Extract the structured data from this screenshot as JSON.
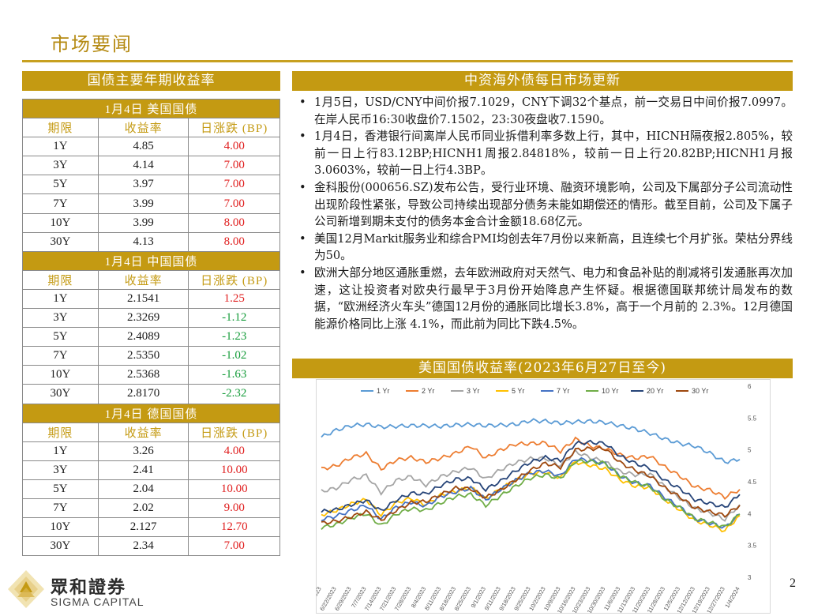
{
  "page": {
    "title": "市场要闻",
    "page_number": "2"
  },
  "left": {
    "header": "国债主要年期收益率",
    "col_headers": [
      "期限",
      "收益率",
      "日涨跌 (BP)"
    ],
    "sections": [
      {
        "title": "1月4日   美国国债",
        "rows": [
          {
            "term": "1Y",
            "yield": "4.85",
            "change": "4.00",
            "dir": "up"
          },
          {
            "term": "3Y",
            "yield": "4.14",
            "change": "7.00",
            "dir": "up"
          },
          {
            "term": "5Y",
            "yield": "3.97",
            "change": "7.00",
            "dir": "up"
          },
          {
            "term": "7Y",
            "yield": "3.99",
            "change": "7.00",
            "dir": "up"
          },
          {
            "term": "10Y",
            "yield": "3.99",
            "change": "8.00",
            "dir": "up"
          },
          {
            "term": "30Y",
            "yield": "4.13",
            "change": "8.00",
            "dir": "up"
          }
        ]
      },
      {
        "title": "1月4日   中国国债",
        "rows": [
          {
            "term": "1Y",
            "yield": "2.1541",
            "change": "1.25",
            "dir": "up"
          },
          {
            "term": "3Y",
            "yield": "2.3269",
            "change": "-1.12",
            "dir": "down"
          },
          {
            "term": "5Y",
            "yield": "2.4089",
            "change": "-1.23",
            "dir": "down"
          },
          {
            "term": "7Y",
            "yield": "2.5350",
            "change": "-1.02",
            "dir": "down"
          },
          {
            "term": "10Y",
            "yield": "2.5368",
            "change": "-1.63",
            "dir": "down"
          },
          {
            "term": "30Y",
            "yield": "2.8170",
            "change": "-2.32",
            "dir": "down"
          }
        ]
      },
      {
        "title": "1月4日   德国国债",
        "rows": [
          {
            "term": "1Y",
            "yield": "3.26",
            "change": "4.00",
            "dir": "up"
          },
          {
            "term": "3Y",
            "yield": "2.41",
            "change": "10.00",
            "dir": "up"
          },
          {
            "term": "5Y",
            "yield": "2.04",
            "change": "10.00",
            "dir": "up"
          },
          {
            "term": "7Y",
            "yield": "2.02",
            "change": "9.00",
            "dir": "up"
          },
          {
            "term": "10Y",
            "yield": "2.127",
            "change": "12.70",
            "dir": "up"
          },
          {
            "term": "30Y",
            "yield": "2.34",
            "change": "7.00",
            "dir": "up"
          }
        ]
      }
    ]
  },
  "right": {
    "header": "中资海外债每日市场更新",
    "bullets": [
      "1月5日，USD/CNY中间价报7.1029，CNY下调32个基点，前一交易日中间价报7.0997。在岸人民币16:30收盘价7.1502，23:30夜盘收7.1590。",
      "1月4日，香港银行间离岸人民币同业拆借利率多数上行，其中，HICNH隔夜报2.805%，较前一日上行83.12BP;HICNH1周报2.84818%，较前一日上行20.82BP;HICNH1月报3.0603%，较前一日上行4.3BP。",
      "金科股份(000656.SZ)发布公告，受行业环境、融资环境影响，公司及下属部分子公司流动性出现阶段性紧张，导致公司持续出现部分债务未能如期偿还的情形。截至目前，公司及下属子公司新增到期未支付的债务本金合计金额18.68亿元。",
      "美国12月Markit服务业和综合PMI均创去年7月份以来新高，且连续七个月扩张。荣枯分界线为50。",
      "欧洲大部分地区通胀重燃，去年欧洲政府对天然气、电力和食品补贴的削减将引发通胀再次加速，这让投资者对欧央行最早于3月份开始降息产生怀疑。根据德国联邦统计局发布的数据，“欧洲经济火车头”德国12月份的通胀同比增长3.8%，高于一个月前的 2.3%。12月德国能源价格同比上涨 4.1%，而此前为同比下跌4.5%。"
    ],
    "bullet_glyph": "•",
    "chart_header": "美国国债收益率(2023年6月27日至今)"
  },
  "logo": {
    "cn": "眾和證券",
    "en": "SIGMA CAPITAL"
  },
  "chart_data": {
    "type": "line",
    "ylim": [
      3,
      6
    ],
    "yticks": [
      "6",
      "5.5",
      "5",
      "4.5",
      "4",
      "3.5",
      "3"
    ],
    "xticks": [
      "6/14/2023",
      "6/22/2023",
      "6/29/2023",
      "7/7/2023",
      "7/14/2023",
      "7/21/2023",
      "7/28/2023",
      "8/4/2023",
      "8/11/2023",
      "8/18/2023",
      "8/25/2023",
      "9/1/2023",
      "9/11/2023",
      "9/18/2023",
      "9/25/2023",
      "10/2/2023",
      "10/9/2023",
      "10/16/2023",
      "10/23/2023",
      "10/30/2023",
      "11/6/2023",
      "11/13/2023",
      "11/20/2023",
      "11/28/2023",
      "12/5/2023",
      "12/12/2023",
      "12/19/2023",
      "12/27/2023",
      "1/4/2024"
    ],
    "legend_position": "top",
    "colors": {
      "1 Yr": "#5b9bd5",
      "2 Yr": "#ed7d31",
      "3 Yr": "#a5a5a5",
      "5 Yr": "#ffc000",
      "7 Yr": "#4472c4",
      "10 Yr": "#70ad47",
      "20 Yr": "#264478",
      "30 Yr": "#9e480e"
    },
    "series": [
      {
        "name": "1 Yr",
        "values": [
          5.2,
          5.31,
          5.38,
          5.4,
          5.36,
          5.37,
          5.38,
          5.38,
          5.37,
          5.39,
          5.4,
          5.38,
          5.39,
          5.4,
          5.46,
          5.45,
          5.42,
          5.44,
          5.45,
          5.43,
          5.38,
          5.33,
          5.26,
          5.17,
          5.1,
          5.06,
          4.95,
          4.81,
          4.85
        ]
      },
      {
        "name": "2 Yr",
        "values": [
          4.7,
          4.75,
          4.88,
          4.94,
          4.7,
          4.84,
          4.88,
          4.81,
          4.87,
          4.95,
          5.06,
          4.87,
          5.0,
          5.09,
          5.1,
          5.11,
          4.98,
          5.17,
          5.06,
          5.02,
          4.92,
          4.87,
          4.9,
          4.73,
          4.59,
          4.42,
          4.37,
          4.26,
          4.38
        ]
      },
      {
        "name": "3 Yr",
        "values": [
          4.35,
          4.4,
          4.53,
          4.6,
          4.33,
          4.52,
          4.58,
          4.45,
          4.58,
          4.66,
          4.72,
          4.54,
          4.69,
          4.8,
          4.86,
          4.87,
          4.75,
          4.97,
          4.88,
          4.81,
          4.66,
          4.61,
          4.62,
          4.42,
          4.24,
          4.08,
          4.01,
          3.91,
          4.14
        ]
      },
      {
        "name": "5 Yr",
        "values": [
          3.98,
          4.05,
          4.15,
          4.22,
          3.98,
          4.17,
          4.24,
          4.14,
          4.29,
          4.35,
          4.41,
          4.23,
          4.39,
          4.52,
          4.63,
          4.65,
          4.56,
          4.81,
          4.76,
          4.7,
          4.53,
          4.43,
          4.41,
          4.22,
          4.06,
          3.89,
          3.82,
          3.73,
          3.97
        ]
      },
      {
        "name": "7 Yr",
        "values": [
          3.91,
          3.96,
          4.05,
          4.13,
          3.91,
          4.1,
          4.18,
          4.12,
          4.27,
          4.34,
          4.4,
          4.22,
          4.38,
          4.52,
          4.64,
          4.67,
          4.59,
          4.86,
          4.83,
          4.78,
          4.59,
          4.48,
          4.44,
          4.25,
          4.1,
          3.92,
          3.85,
          3.78,
          3.99
        ]
      },
      {
        "name": "10 Yr",
        "values": [
          3.78,
          3.83,
          3.93,
          4.0,
          3.81,
          3.99,
          4.08,
          4.05,
          4.17,
          4.27,
          4.3,
          4.13,
          4.28,
          4.43,
          4.56,
          4.61,
          4.55,
          4.82,
          4.82,
          4.79,
          4.59,
          4.49,
          4.42,
          4.22,
          4.09,
          3.92,
          3.86,
          3.79,
          3.99
        ]
      },
      {
        "name": "20 Yr",
        "values": [
          4.03,
          4.06,
          4.14,
          4.21,
          4.04,
          4.21,
          4.32,
          4.31,
          4.44,
          4.54,
          4.55,
          4.38,
          4.51,
          4.67,
          4.81,
          4.88,
          4.83,
          5.1,
          5.12,
          5.1,
          4.9,
          4.79,
          4.71,
          4.52,
          4.39,
          4.22,
          4.16,
          4.1,
          4.3
        ]
      },
      {
        "name": "30 Yr",
        "values": [
          3.85,
          3.88,
          3.95,
          4.03,
          3.9,
          4.05,
          4.17,
          4.19,
          4.3,
          4.4,
          4.39,
          4.25,
          4.37,
          4.53,
          4.68,
          4.79,
          4.73,
          5.0,
          5.02,
          5.02,
          4.8,
          4.68,
          4.59,
          4.4,
          4.26,
          4.09,
          4.03,
          3.97,
          4.13
        ]
      }
    ]
  }
}
